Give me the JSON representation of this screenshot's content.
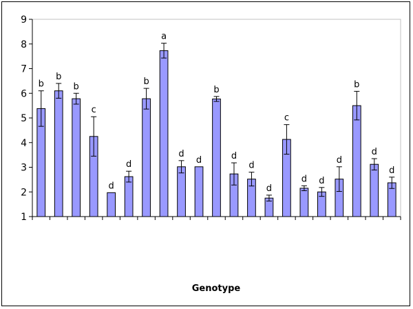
{
  "chart_data": {
    "type": "bar",
    "title": "",
    "xlabel": "Genotype",
    "ylabel": "",
    "ylim": [
      1,
      9
    ],
    "yticks": [
      1,
      2,
      3,
      4,
      5,
      6,
      7,
      8,
      9
    ],
    "grid": false,
    "legend": "none",
    "bar_color": "#9999ff",
    "bar_stroke": "#000000",
    "values": [
      5.38,
      6.1,
      5.78,
      4.25,
      1.97,
      2.62,
      5.78,
      7.73,
      3.02,
      3.02,
      5.77,
      2.73,
      2.52,
      1.75,
      4.13,
      2.15,
      2.0,
      2.52,
      5.5,
      3.12,
      2.37
    ],
    "errors": [
      0.72,
      0.3,
      0.22,
      0.8,
      0.0,
      0.22,
      0.42,
      0.3,
      0.25,
      0.0,
      0.1,
      0.45,
      0.28,
      0.12,
      0.6,
      0.1,
      0.18,
      0.5,
      0.58,
      0.23,
      0.23
    ],
    "letters": [
      "b",
      "b",
      "b",
      "c",
      "d",
      "d",
      "b",
      "a",
      "d",
      "d",
      "b",
      "d",
      "d",
      "d",
      "c",
      "d",
      "d",
      "d",
      "b",
      "d",
      "d"
    ]
  }
}
